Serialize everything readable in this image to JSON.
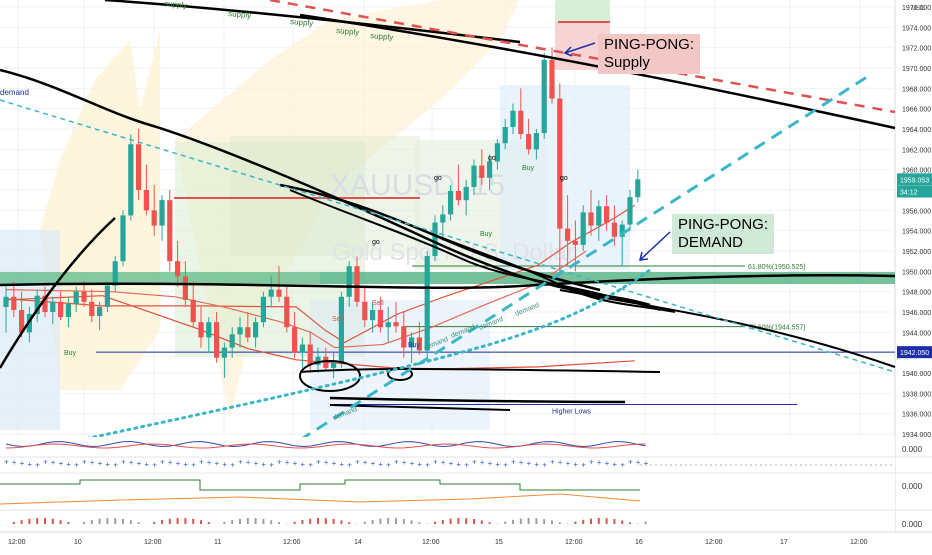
{
  "chart_data": {
    "type": "candlestick",
    "watermark": {
      "symbol": "XAUUSD, 15",
      "description": "Gold Spot / U.S. Dollar"
    },
    "currency": "USD",
    "y_axis": {
      "range": [
        1933,
        1978
      ],
      "ticks": [
        "1976.000",
        "1974.000",
        "1972.000",
        "1970.000",
        "1968.000",
        "1966.000",
        "1964.000",
        "1962.000",
        "1960.000",
        "1958.000",
        "1956.000",
        "1954.000",
        "1952.000",
        "1950.000",
        "1948.000",
        "1946.000",
        "1944.000",
        "1942.000",
        "1940.000",
        "1938.000",
        "1936.000",
        "1934.000"
      ]
    },
    "price_tags": [
      {
        "label": "1959.053",
        "price": 1959.05,
        "color": "#26a69a"
      },
      {
        "label": "34:12",
        "price": 1957.85,
        "color": "#26a69a"
      },
      {
        "label": "1942.050",
        "price": 1942.05,
        "color": "#1e2ea8"
      }
    ],
    "x_axis": {
      "labels": [
        "12:00",
        "10",
        "12:00",
        "11",
        "12:00",
        "14",
        "12:00",
        "15",
        "12:00",
        "16",
        "12:00",
        "17",
        "12:00"
      ]
    },
    "candles": [
      [
        1946.5,
        1948.5,
        1944.0,
        1947.5
      ],
      [
        1947.5,
        1949.0,
        1945.5,
        1946.2
      ],
      [
        1946.2,
        1948.0,
        1943.5,
        1944.0
      ],
      [
        1944.0,
        1946.5,
        1943.0,
        1945.8
      ],
      [
        1945.8,
        1948.2,
        1945.0,
        1947.6
      ],
      [
        1947.6,
        1948.5,
        1945.5,
        1946.0
      ],
      [
        1946.0,
        1947.5,
        1944.8,
        1947.0
      ],
      [
        1947.0,
        1948.0,
        1945.2,
        1945.5
      ],
      [
        1945.5,
        1947.5,
        1944.5,
        1946.8
      ],
      [
        1946.8,
        1948.5,
        1946.0,
        1948.0
      ],
      [
        1948.0,
        1949.0,
        1946.5,
        1947.0
      ],
      [
        1947.0,
        1948.2,
        1945.0,
        1945.6
      ],
      [
        1945.6,
        1947.0,
        1944.2,
        1946.5
      ],
      [
        1946.5,
        1949.0,
        1946.0,
        1948.6
      ],
      [
        1948.6,
        1951.5,
        1948.0,
        1951.0
      ],
      [
        1951.0,
        1956.0,
        1950.5,
        1955.5
      ],
      [
        1955.5,
        1963.5,
        1955.0,
        1962.5
      ],
      [
        1962.5,
        1964.0,
        1957.0,
        1958.0
      ],
      [
        1958.0,
        1960.5,
        1955.5,
        1956.0
      ],
      [
        1956.0,
        1958.5,
        1953.5,
        1954.5
      ],
      [
        1954.5,
        1957.5,
        1953.0,
        1957.0
      ],
      [
        1957.0,
        1958.0,
        1950.0,
        1951.0
      ],
      [
        1951.0,
        1953.0,
        1948.5,
        1949.5
      ],
      [
        1949.5,
        1951.0,
        1946.5,
        1947.2
      ],
      [
        1947.2,
        1949.0,
        1944.5,
        1945.0
      ],
      [
        1945.0,
        1946.5,
        1942.5,
        1943.5
      ],
      [
        1943.5,
        1945.5,
        1942.0,
        1945.0
      ],
      [
        1945.0,
        1946.0,
        1941.0,
        1941.5
      ],
      [
        1941.5,
        1943.0,
        1939.5,
        1942.5
      ],
      [
        1942.5,
        1944.5,
        1941.5,
        1943.8
      ],
      [
        1943.8,
        1945.5,
        1942.5,
        1944.5
      ],
      [
        1944.5,
        1946.0,
        1943.0,
        1943.5
      ],
      [
        1943.5,
        1945.5,
        1942.5,
        1945.0
      ],
      [
        1945.0,
        1948.0,
        1944.5,
        1947.5
      ],
      [
        1947.5,
        1949.5,
        1946.5,
        1948.2
      ],
      [
        1948.2,
        1950.5,
        1947.0,
        1947.5
      ],
      [
        1947.5,
        1948.5,
        1944.0,
        1944.5
      ],
      [
        1944.5,
        1946.0,
        1941.5,
        1942.0
      ],
      [
        1942.0,
        1943.5,
        1940.5,
        1942.8
      ],
      [
        1942.8,
        1944.0,
        1940.0,
        1940.8
      ],
      [
        1940.8,
        1942.5,
        1940.0,
        1941.6
      ],
      [
        1941.6,
        1942.5,
        1940.2,
        1940.5
      ],
      [
        1940.5,
        1942.0,
        1939.5,
        1941.0
      ],
      [
        1941.0,
        1948.0,
        1940.5,
        1947.5
      ],
      [
        1947.5,
        1951.0,
        1946.5,
        1950.5
      ],
      [
        1950.5,
        1951.5,
        1946.5,
        1947.0
      ],
      [
        1947.0,
        1948.5,
        1944.5,
        1945.2
      ],
      [
        1945.2,
        1947.0,
        1944.0,
        1946.2
      ],
      [
        1946.2,
        1947.5,
        1944.0,
        1944.5
      ],
      [
        1944.5,
        1946.5,
        1943.0,
        1945.0
      ],
      [
        1945.0,
        1947.0,
        1944.0,
        1944.6
      ],
      [
        1944.6,
        1946.0,
        1941.5,
        1942.5
      ],
      [
        1942.5,
        1944.0,
        1941.0,
        1943.5
      ],
      [
        1943.5,
        1945.0,
        1941.8,
        1942.2
      ],
      [
        1942.2,
        1952.0,
        1941.5,
        1951.5
      ],
      [
        1951.5,
        1955.5,
        1951.0,
        1954.8
      ],
      [
        1954.8,
        1956.5,
        1953.0,
        1955.6
      ],
      [
        1955.6,
        1958.5,
        1955.0,
        1957.9
      ],
      [
        1957.9,
        1960.5,
        1956.5,
        1957.0
      ],
      [
        1957.0,
        1959.0,
        1955.5,
        1958.3
      ],
      [
        1958.3,
        1961.0,
        1957.5,
        1960.4
      ],
      [
        1960.4,
        1962.0,
        1958.5,
        1959.2
      ],
      [
        1959.2,
        1961.5,
        1958.0,
        1960.8
      ],
      [
        1960.8,
        1963.0,
        1960.0,
        1962.6
      ],
      [
        1962.6,
        1965.0,
        1962.0,
        1964.2
      ],
      [
        1964.2,
        1966.5,
        1963.5,
        1965.8
      ],
      [
        1965.8,
        1968.0,
        1963.0,
        1963.5
      ],
      [
        1963.5,
        1965.0,
        1961.5,
        1962.0
      ],
      [
        1962.0,
        1964.0,
        1961.0,
        1963.6
      ],
      [
        1963.6,
        1971.5,
        1963.0,
        1970.8
      ],
      [
        1970.8,
        1972.0,
        1966.5,
        1967.0
      ],
      [
        1967.0,
        1968.5,
        1949.5,
        1954.2
      ],
      [
        1954.2,
        1957.5,
        1950.5,
        1953.0
      ],
      [
        1953.0,
        1955.0,
        1950.0,
        1952.6
      ],
      [
        1952.6,
        1956.5,
        1952.0,
        1955.8
      ],
      [
        1955.8,
        1958.0,
        1953.5,
        1954.5
      ],
      [
        1954.5,
        1957.0,
        1953.0,
        1956.4
      ],
      [
        1956.4,
        1957.5,
        1954.0,
        1954.8
      ],
      [
        1954.8,
        1956.5,
        1952.5,
        1953.4
      ],
      [
        1953.4,
        1955.0,
        1950.5,
        1954.6
      ],
      [
        1954.6,
        1958.0,
        1954.0,
        1957.3
      ],
      [
        1957.3,
        1960.0,
        1956.8,
        1959.05
      ]
    ],
    "moving_averages": [
      {
        "color": "#e24c3c",
        "values": [
          [
            0,
            1947.2
          ],
          [
            20,
            1947.6
          ],
          [
            40,
            1944.3
          ],
          [
            50,
            1942.4
          ],
          [
            60,
            1941.3
          ],
          [
            70,
            1940.9
          ],
          [
            80,
            1940.5
          ],
          [
            90,
            1940.4
          ],
          [
            110,
            1940.6
          ],
          [
            130,
            1941.2
          ]
        ]
      },
      {
        "color": "#e0563f",
        "values": [
          [
            0,
            1947.3
          ],
          [
            20,
            1946.6
          ],
          [
            40,
            1946.6
          ],
          [
            60,
            1946.5
          ],
          [
            66,
            1944.2
          ],
          [
            70,
            1943.0
          ],
          [
            81,
            1945.8
          ],
          [
            90,
            1947.4
          ],
          [
            100,
            1949.0
          ],
          [
            110,
            1950.6
          ],
          [
            117,
            1952.9
          ],
          [
            125,
            1955.0
          ],
          [
            130,
            1956.5
          ]
        ]
      },
      {
        "color": "#e56b5a",
        "values": [
          [
            0,
            1948.2
          ],
          [
            22,
            1948.0
          ],
          [
            35,
            1947.5
          ],
          [
            45,
            1946.5
          ],
          [
            57,
            1945.0
          ],
          [
            63,
            1944.0
          ],
          [
            68,
            1942.5
          ],
          [
            78,
            1942.8
          ],
          [
            88,
            1944.5
          ],
          [
            100,
            1946.9
          ],
          [
            110,
            1948.8
          ],
          [
            120,
            1952.0
          ]
        ]
      }
    ],
    "zones": [
      {
        "type": "supply",
        "color": "#f6d0d0",
        "label": "Supply"
      },
      {
        "type": "demand",
        "color": "#b7dfc5",
        "label": "Demand"
      }
    ],
    "levels": [
      {
        "price": 1950.525,
        "label": "61.80%(1950.525)",
        "color": "#2e7d32"
      },
      {
        "price": 1944.557,
        "label": "78.60%(1944.557)",
        "color": "#2e7d32"
      },
      {
        "price": 1942.05,
        "label": "",
        "color": "#1e2ea8"
      },
      {
        "price": 1936.9,
        "label": "Higher Lows",
        "color": "#1e2ea8"
      }
    ],
    "trendline_labels": [
      {
        "text": "supply",
        "series": "top"
      },
      {
        "text": "supply",
        "series": "top"
      },
      {
        "text": "supply",
        "series": "top"
      },
      {
        "text": "supply",
        "series": "top"
      },
      {
        "text": "supply",
        "series": "top"
      },
      {
        "text": "demand",
        "series": "bottom"
      },
      {
        "text": "demand",
        "series": "bottom"
      },
      {
        "text": "demand",
        "series": "bottom"
      },
      {
        "text": "demand",
        "series": "bottom"
      },
      {
        "text": "demand",
        "series": "bottom"
      }
    ],
    "signals": [
      "Buy",
      "Buy",
      "Buy",
      "Sell",
      "Sell",
      "Buy",
      "go",
      "go",
      "go",
      "go"
    ],
    "left_label": "demand",
    "callouts": {
      "supply": [
        "PING-PONG:",
        "Supply"
      ],
      "demand": [
        "PING-PONG:",
        "DEMAND"
      ]
    },
    "indicator_panes": [
      {
        "label": "0.000"
      },
      {
        "label": "0.000"
      },
      {
        "label": "0.000"
      }
    ]
  }
}
